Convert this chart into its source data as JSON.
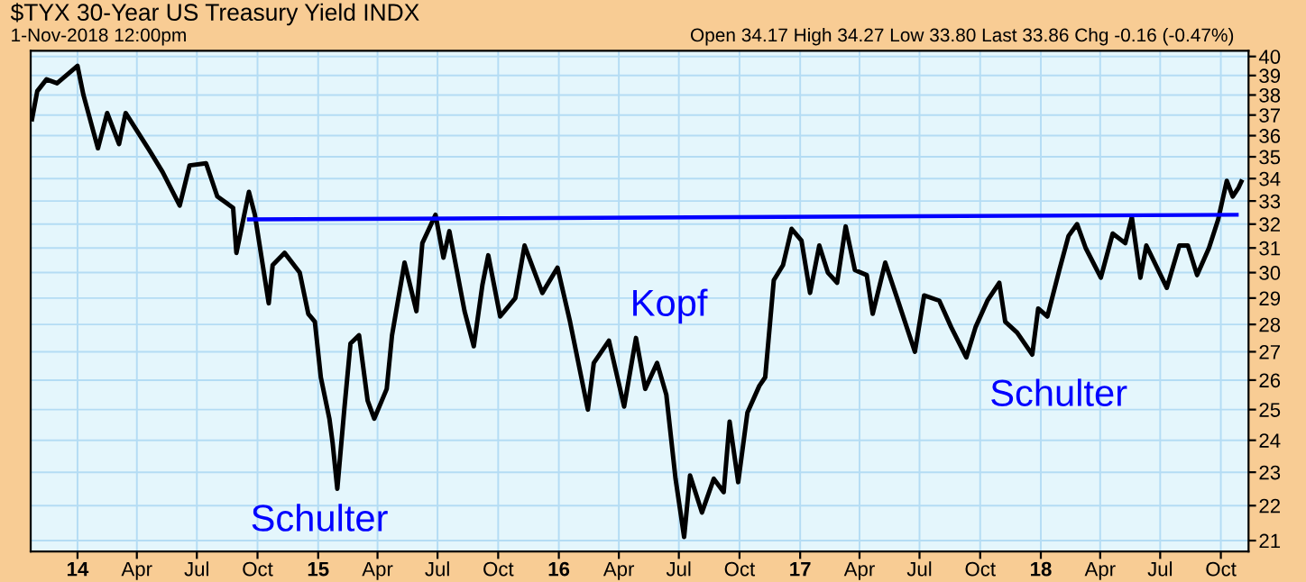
{
  "chart_data": {
    "type": "line",
    "title": "$TYX 30-Year US Treasury Yield INDX",
    "annotations": [
      "1-Nov-2018 12:00pm",
      "Open 34.17 High 34.27 Low 33.80 Last 33.86 Chg -0.16 (-0.47%)",
      "Schulter",
      "Kopf",
      "Schulter"
    ],
    "series": [
      {
        "color": "#000000",
        "x": [
          "2013-10-24",
          "2013-11-01",
          "2013-11-15",
          "2013-12-01",
          "2014-01-01",
          "2014-01-10",
          "2014-02-01",
          "2014-02-15",
          "2014-03-05",
          "2014-03-15",
          "2014-04-20",
          "2014-05-10",
          "2014-06-05",
          "2014-06-20",
          "2014-07-15",
          "2014-08-01",
          "2014-08-25",
          "2014-08-30",
          "2014-09-18",
          "2014-09-27",
          "2014-10-18",
          "2014-10-24",
          "2014-11-11",
          "2014-12-04",
          "2014-12-17",
          "2014-12-27",
          "2015-01-05",
          "2015-01-18",
          "2015-01-23",
          "2015-01-30",
          "2015-02-10",
          "2015-02-19",
          "2015-03-04",
          "2015-03-17",
          "2015-03-27",
          "2015-04-15",
          "2015-04-23",
          "2015-05-12",
          "2015-05-30",
          "2015-06-08",
          "2015-06-28",
          "2015-07-10",
          "2015-07-19",
          "2015-08-11",
          "2015-08-25",
          "2015-09-07",
          "2015-09-16",
          "2015-10-04",
          "2015-10-27",
          "2015-11-10",
          "2015-12-07",
          "2015-12-30",
          "2016-01-18",
          "2016-02-14",
          "2016-02-23",
          "2016-03-17",
          "2016-04-09",
          "2016-04-27",
          "2016-05-11",
          "2016-05-29",
          "2016-06-12",
          "2016-06-26",
          "2016-07-09",
          "2016-07-18",
          "2016-08-05",
          "2016-08-23",
          "2016-09-07",
          "2016-09-16",
          "2016-09-29",
          "2016-10-13",
          "2016-10-31",
          "2016-11-09",
          "2016-11-22",
          "2016-12-06",
          "2016-12-19",
          "2017-01-03",
          "2017-01-16",
          "2017-01-30",
          "2017-02-12",
          "2017-02-26",
          "2017-03-11",
          "2017-03-25",
          "2017-04-12",
          "2017-04-21",
          "2017-05-10",
          "2017-05-28",
          "2017-06-24",
          "2017-07-08",
          "2017-07-31",
          "2017-08-18",
          "2017-09-10",
          "2017-09-24",
          "2017-10-12",
          "2017-10-30",
          "2017-11-08",
          "2017-11-26",
          "2017-12-19",
          "2017-12-28",
          "2018-01-11",
          "2018-01-29",
          "2018-02-12",
          "2018-02-25",
          "2018-03-10",
          "2018-04-02",
          "2018-04-20",
          "2018-05-09",
          "2018-05-19",
          "2018-06-01",
          "2018-06-10",
          "2018-07-11",
          "2018-07-30",
          "2018-08-12",
          "2018-08-26",
          "2018-09-13",
          "2018-09-27",
          "2018-10-10",
          "2018-10-19",
          "2018-10-28",
          "2018-11-01"
        ],
        "values": [
          36.8,
          38.2,
          38.8,
          38.6,
          39.5,
          38.0,
          35.4,
          37.1,
          35.6,
          37.1,
          35.3,
          34.3,
          32.8,
          34.6,
          34.7,
          33.2,
          32.7,
          30.8,
          33.4,
          32.4,
          28.8,
          30.3,
          30.8,
          30.0,
          28.4,
          28.1,
          26.1,
          24.7,
          23.9,
          22.5,
          25.1,
          27.3,
          27.6,
          25.3,
          24.7,
          25.7,
          27.6,
          30.4,
          28.5,
          31.2,
          32.4,
          30.6,
          31.7,
          28.5,
          27.2,
          29.5,
          30.7,
          28.3,
          29.0,
          31.1,
          29.2,
          30.2,
          28.1,
          25.0,
          26.6,
          27.4,
          25.1,
          27.5,
          25.7,
          26.6,
          25.5,
          22.8,
          21.1,
          22.9,
          21.8,
          22.8,
          22.4,
          24.6,
          22.7,
          24.9,
          25.8,
          26.1,
          29.7,
          30.3,
          31.8,
          31.3,
          29.2,
          31.1,
          30.0,
          29.6,
          31.9,
          30.1,
          29.9,
          28.4,
          30.4,
          29.0,
          27.0,
          29.1,
          28.9,
          27.9,
          26.8,
          27.9,
          28.9,
          29.6,
          28.1,
          27.7,
          26.9,
          28.6,
          28.3,
          30.1,
          31.5,
          32.0,
          31.0,
          29.8,
          31.6,
          31.2,
          32.3,
          29.8,
          31.1,
          29.4,
          31.1,
          31.1,
          29.9,
          31.0,
          32.2,
          33.9,
          33.2,
          33.6,
          33.86
        ]
      },
      {
        "color": "#0000ff",
        "x": [
          "2014-09-18",
          "2018-10-25"
        ],
        "values": [
          32.2,
          32.4
        ]
      }
    ],
    "xlim": [
      "2013-10-22",
      "2018-11-12"
    ],
    "xticks": [
      {
        "value": "2014-01-01",
        "label": "14"
      },
      {
        "value": "2014-04-01",
        "label": "Apr"
      },
      {
        "value": "2014-07-01",
        "label": "Jul"
      },
      {
        "value": "2014-10-01",
        "label": "Oct"
      },
      {
        "value": "2015-01-01",
        "label": "15"
      },
      {
        "value": "2015-04-01",
        "label": "Apr"
      },
      {
        "value": "2015-07-01",
        "label": "Jul"
      },
      {
        "value": "2015-10-01",
        "label": "Oct"
      },
      {
        "value": "2016-01-01",
        "label": "16"
      },
      {
        "value": "2016-04-01",
        "label": "Apr"
      },
      {
        "value": "2016-07-01",
        "label": "Jul"
      },
      {
        "value": "2016-10-01",
        "label": "Oct"
      },
      {
        "value": "2017-01-01",
        "label": "17"
      },
      {
        "value": "2017-04-01",
        "label": "Apr"
      },
      {
        "value": "2017-07-01",
        "label": "Jul"
      },
      {
        "value": "2017-10-01",
        "label": "Oct"
      },
      {
        "value": "2018-01-01",
        "label": "18"
      },
      {
        "value": "2018-04-01",
        "label": "Apr"
      },
      {
        "value": "2018-07-01",
        "label": "Jul"
      },
      {
        "value": "2018-10-01",
        "label": "Oct"
      }
    ],
    "ylim": [
      20.7,
      40.3
    ],
    "log": true,
    "yticks": [
      21,
      22,
      23,
      24,
      25,
      26,
      27,
      28,
      29,
      30,
      31,
      32,
      33,
      34,
      35,
      36,
      37,
      38,
      39,
      40
    ],
    "grid": true,
    "legend": false
  }
}
